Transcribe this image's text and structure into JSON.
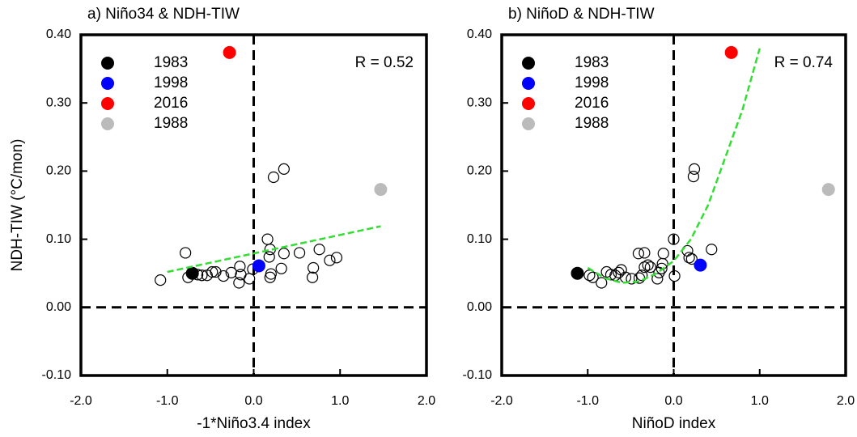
{
  "chart_data": [
    {
      "type": "scatter",
      "title": "a) Niño34 & NDH-TIW",
      "xlabel": "-1*Niño3.4 index",
      "ylabel": "NDH-TIW (°C/mon)",
      "annotation": "R = 0.52",
      "xlim": [
        -2,
        2
      ],
      "ylim": [
        -0.1,
        0.4
      ],
      "xticks": [
        {
          "value": -2,
          "label": "-2.0"
        },
        {
          "value": -1,
          "label": "-1.0"
        },
        {
          "value": 0,
          "label": "0.0"
        },
        {
          "value": 1,
          "label": "1.0"
        },
        {
          "value": 2,
          "label": "2.0"
        }
      ],
      "yticks": [
        {
          "value": -0.1,
          "label": "-0.10"
        },
        {
          "value": 0,
          "label": "0.00"
        },
        {
          "value": 0.1,
          "label": "0.10"
        },
        {
          "value": 0.2,
          "label": "0.20"
        },
        {
          "value": 0.3,
          "label": "0.30"
        },
        {
          "value": 0.4,
          "label": "0.40"
        }
      ],
      "hline": 0,
      "vline": 0,
      "series": [
        {
          "color": "#000000",
          "marker": "open",
          "x": [
            -1.08,
            -0.79,
            -0.76,
            -0.65,
            -0.6,
            -0.54,
            -0.48,
            -0.44,
            -0.35,
            -0.26,
            -0.17,
            -0.16,
            -0.15,
            -0.05,
            -0.01,
            0.16,
            0.19,
            0.2,
            0.18,
            0.19,
            0.23,
            0.35,
            0.32,
            0.35,
            0.53,
            0.69,
            0.68,
            0.76,
            0.88,
            0.96
          ],
          "values": [
            0.04,
            0.08,
            0.044,
            0.048,
            0.047,
            0.047,
            0.052,
            0.052,
            0.046,
            0.051,
            0.036,
            0.06,
            0.048,
            0.042,
            0.056,
            0.1,
            0.085,
            0.049,
            0.074,
            0.044,
            0.191,
            0.203,
            0.057,
            0.079,
            0.08,
            0.058,
            0.044,
            0.085,
            0.069,
            0.073
          ]
        },
        {
          "name": "1983",
          "color": "#000000",
          "marker": "filled",
          "x": [
            -0.71
          ],
          "values": [
            0.05
          ]
        },
        {
          "name": "1998",
          "color": "#0000ff",
          "marker": "filled",
          "x": [
            0.06
          ],
          "values": [
            0.061
          ]
        },
        {
          "name": "2016",
          "color": "#ff0000",
          "marker": "filled",
          "x": [
            -0.28
          ],
          "values": [
            0.374
          ]
        },
        {
          "name": "1988",
          "color": "#bbbbbb",
          "marker": "filled",
          "x": [
            1.47
          ],
          "values": [
            0.173
          ]
        },
        {
          "color": "#33dd33",
          "marker": "dashed-line",
          "x": [
            -1.0,
            1.47
          ],
          "values": [
            0.052,
            0.119
          ]
        }
      ]
    },
    {
      "type": "scatter",
      "title": "b) NiñoD & NDH-TIW",
      "xlabel": "NiñoD index",
      "annotation": "R = 0.74",
      "xlim": [
        -2,
        2
      ],
      "ylim": [
        -0.1,
        0.4
      ],
      "xticks": [
        {
          "value": -2,
          "label": "-2.0"
        },
        {
          "value": -1,
          "label": "-1.0"
        },
        {
          "value": 0,
          "label": "0.0"
        },
        {
          "value": 1,
          "label": "1.0"
        },
        {
          "value": 2,
          "label": "2.0"
        }
      ],
      "yticks": [
        {
          "value": -0.1,
          "label": "-0.10"
        },
        {
          "value": 0,
          "label": "0.00"
        },
        {
          "value": 0.1,
          "label": "0.10"
        },
        {
          "value": 0.2,
          "label": "0.20"
        },
        {
          "value": 0.3,
          "label": "0.30"
        },
        {
          "value": 0.4,
          "label": "0.40"
        }
      ],
      "hline": 0,
      "vline": 0,
      "series": [
        {
          "color": "#000000",
          "marker": "open",
          "x": [
            -0.98,
            -0.94,
            -0.84,
            -0.78,
            -0.73,
            -0.68,
            -0.64,
            -0.61,
            -0.56,
            -0.49,
            -0.4,
            -0.37,
            -0.34,
            -0.3,
            -0.27,
            -0.19,
            -0.17,
            -0.14,
            -0.12,
            -0.13,
            -0.41,
            -0.34,
            0.0,
            0.01,
            0.16,
            0.18,
            0.21,
            0.23,
            0.24,
            0.44
          ],
          "values": [
            0.047,
            0.044,
            0.036,
            0.052,
            0.048,
            0.047,
            0.051,
            0.055,
            0.044,
            0.042,
            0.043,
            0.047,
            0.059,
            0.062,
            0.059,
            0.042,
            0.051,
            0.057,
            0.079,
            0.064,
            0.079,
            0.08,
            0.1,
            0.046,
            0.083,
            0.073,
            0.071,
            0.192,
            0.203,
            0.085
          ]
        },
        {
          "name": "1983",
          "color": "#000000",
          "marker": "filled",
          "x": [
            -1.12
          ],
          "values": [
            0.05
          ]
        },
        {
          "name": "1998",
          "color": "#0000ff",
          "marker": "filled",
          "x": [
            0.31
          ],
          "values": [
            0.062
          ]
        },
        {
          "name": "2016",
          "color": "#ff0000",
          "marker": "filled",
          "x": [
            0.67
          ],
          "values": [
            0.374
          ]
        },
        {
          "name": "1988",
          "color": "#bbbbbb",
          "marker": "filled",
          "x": [
            1.8
          ],
          "values": [
            0.173
          ]
        },
        {
          "color": "#33dd33",
          "marker": "dashed-line",
          "x": [
            -1.0,
            -0.8,
            -0.6,
            -0.4,
            -0.2,
            0.0,
            0.2,
            0.4,
            0.6,
            0.8,
            1.0
          ],
          "values": [
            0.058,
            0.043,
            0.036,
            0.038,
            0.05,
            0.068,
            0.1,
            0.15,
            0.22,
            0.29,
            0.38
          ]
        }
      ]
    }
  ]
}
